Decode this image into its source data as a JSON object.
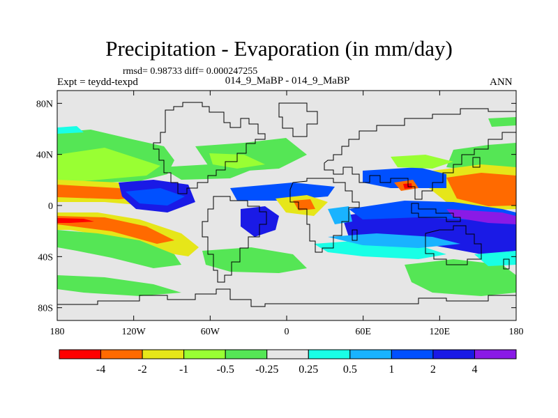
{
  "figure": {
    "title": "Precipitation - Evaporation (in mm/day)",
    "stats_line": "rmsd= 0.98733 diff= 0.000247255",
    "experiment": "Expt = teydd-texpd",
    "cases": "014_9_MaBP - 014_9_MaBP",
    "season": "ANN"
  },
  "map": {
    "projection": "cylindrical equidistant",
    "lon_range": [
      -180,
      180
    ],
    "lat_range": [
      -90,
      90
    ],
    "background_color": "#e6e6e6",
    "coastline_color": "#000000",
    "lat_ticks": [
      {
        "label": "80N",
        "value": 80
      },
      {
        "label": "40N",
        "value": 40
      },
      {
        "label": "0",
        "value": 0
      },
      {
        "label": "40S",
        "value": -40
      },
      {
        "label": "80S",
        "value": -80
      }
    ],
    "lon_ticks": [
      {
        "label": "180",
        "value": -180
      },
      {
        "label": "120W",
        "value": -120
      },
      {
        "label": "60W",
        "value": -60
      },
      {
        "label": "0",
        "value": 0
      },
      {
        "label": "60E",
        "value": 60
      },
      {
        "label": "120E",
        "value": 120
      },
      {
        "label": "180",
        "value": 180
      }
    ]
  },
  "colorbar": {
    "colors": [
      "#ff0000",
      "#ff6a00",
      "#e6e619",
      "#99ff33",
      "#55e655",
      "#e6e6e6",
      "#19ffe6",
      "#19b3ff",
      "#0050ff",
      "#1a1ae6",
      "#8a1ae6"
    ],
    "labels": [
      "-4",
      "-2",
      "-1",
      "-0.5",
      "-0.25",
      "0.25",
      "0.5",
      "1",
      "2",
      "4"
    ]
  }
}
